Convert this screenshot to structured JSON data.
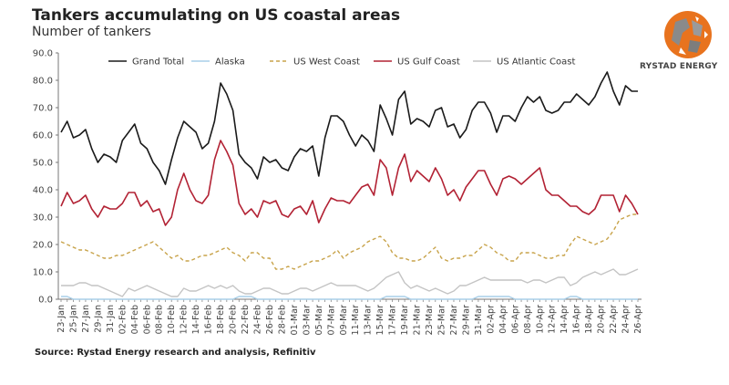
{
  "header": {
    "title": "Tankers accumulating on US coastal areas",
    "subtitle": "Number of tankers"
  },
  "logo": {
    "icon": "rystad-globe-icon",
    "text": "RYSTAD ENERGY"
  },
  "source": "Source: Rystad Energy research and analysis, Refinitiv",
  "chart_data": {
    "type": "line",
    "title": "Tankers accumulating on US coastal areas",
    "subtitle": "Number of tankers",
    "xlabel": "",
    "ylabel": "Number of tankers",
    "ylim": [
      0,
      90
    ],
    "yticks": [
      "0.0",
      "10.0",
      "20.0",
      "30.0",
      "40.0",
      "50.0",
      "60.0",
      "70.0",
      "80.0",
      "90.0"
    ],
    "grid": false,
    "legend_position": "top",
    "x_tick_labels": [
      "23-Jan",
      "25-Jan",
      "27-Jan",
      "29-Jan",
      "31-Jan",
      "02-Feb",
      "04-Feb",
      "06-Feb",
      "08-Feb",
      "10-Feb",
      "12-Feb",
      "14-Feb",
      "16-Feb",
      "18-Feb",
      "20-Feb",
      "22-Feb",
      "24-Feb",
      "26-Feb",
      "28-Feb",
      "01-Mar",
      "03-Mar",
      "05-Mar",
      "07-Mar",
      "09-Mar",
      "11-Mar",
      "13-Mar",
      "15-Mar",
      "17-Mar",
      "19-Mar",
      "21-Mar",
      "23-Mar",
      "25-Mar",
      "27-Mar",
      "29-Mar",
      "31-Mar",
      "02-Apr",
      "04-Apr",
      "06-Apr",
      "08-Apr",
      "10-Apr",
      "12-Apr",
      "14-Apr",
      "16-Apr",
      "18-Apr",
      "20-Apr",
      "22-Apr",
      "24-Apr",
      "26-Apr"
    ],
    "x_start": "23-Jan",
    "x_end": "26-Apr",
    "points_per_day": 1,
    "series": [
      {
        "name": "Grand Total",
        "color": "#1a1a1a",
        "dash": "solid",
        "values": [
          61,
          65,
          59,
          60,
          62,
          55,
          50,
          53,
          52,
          50,
          58,
          61,
          64,
          57,
          55,
          50,
          47,
          42,
          51,
          59,
          65,
          63,
          61,
          55,
          57,
          65,
          79,
          75,
          69,
          53,
          50,
          48,
          44,
          52,
          50,
          51,
          48,
          47,
          52,
          55,
          54,
          56,
          45,
          59,
          67,
          67,
          65,
          60,
          56,
          60,
          58,
          54,
          71,
          66,
          60,
          73,
          76,
          64,
          66,
          65,
          63,
          69,
          70,
          63,
          64,
          59,
          62,
          69,
          72,
          72,
          68,
          61,
          67,
          67,
          65,
          70,
          74,
          72,
          74,
          69,
          68,
          69,
          72,
          72,
          75,
          73,
          71,
          74,
          79,
          83,
          76,
          71,
          78,
          76,
          76
        ]
      },
      {
        "name": "Alaska",
        "color": "#a9cfe8",
        "dash": "solid",
        "values": [
          1,
          1,
          0,
          0,
          0,
          0,
          0,
          0,
          0,
          0,
          0,
          0,
          0,
          0,
          0,
          0,
          0,
          0,
          0,
          0,
          0,
          0,
          0,
          0,
          0,
          0,
          0,
          0,
          0,
          1,
          1,
          1,
          0,
          0,
          0,
          0,
          0,
          0,
          0,
          0,
          0,
          0,
          0,
          0,
          0,
          0,
          0,
          0,
          0,
          0,
          0,
          0,
          0,
          1,
          1,
          1,
          1,
          0,
          0,
          0,
          0,
          0,
          0,
          0,
          0,
          0,
          0,
          0,
          1,
          1,
          1,
          1,
          1,
          1,
          0,
          0,
          0,
          0,
          0,
          0,
          0,
          0,
          0,
          1,
          1,
          0,
          0,
          0,
          0,
          0,
          0,
          0,
          0,
          0,
          0
        ]
      },
      {
        "name": "US West Coast",
        "color": "#c8a34a",
        "dash": "dashed",
        "values": [
          21,
          20,
          19,
          18,
          18,
          17,
          16,
          15,
          15,
          16,
          16,
          17,
          18,
          19,
          20,
          21,
          19,
          17,
          15,
          16,
          14,
          14,
          15,
          16,
          16,
          17,
          18,
          19,
          17,
          16,
          14,
          17,
          17,
          15,
          15,
          11,
          11,
          12,
          11,
          12,
          13,
          14,
          14,
          15,
          16,
          18,
          15,
          17,
          18,
          19,
          21,
          22,
          23,
          21,
          17,
          15,
          15,
          14,
          14,
          15,
          17,
          19,
          15,
          14,
          15,
          15,
          16,
          16,
          18,
          20,
          19,
          17,
          16,
          14,
          14,
          17,
          17,
          17,
          16,
          15,
          15,
          16,
          16,
          20,
          23,
          22,
          21,
          20,
          21,
          22,
          25,
          29,
          30,
          31,
          31
        ]
      },
      {
        "name": "US Gulf Coast",
        "color": "#b22234",
        "dash": "solid",
        "values": [
          34,
          39,
          35,
          36,
          38,
          33,
          30,
          34,
          33,
          33,
          35,
          39,
          39,
          34,
          36,
          32,
          33,
          27,
          30,
          40,
          46,
          40,
          36,
          35,
          38,
          51,
          58,
          54,
          49,
          35,
          31,
          33,
          30,
          36,
          35,
          36,
          31,
          30,
          33,
          34,
          31,
          36,
          28,
          33,
          37,
          36,
          36,
          35,
          38,
          41,
          42,
          38,
          51,
          48,
          38,
          48,
          53,
          43,
          47,
          45,
          43,
          48,
          44,
          38,
          40,
          36,
          41,
          44,
          47,
          47,
          42,
          38,
          44,
          45,
          44,
          42,
          44,
          46,
          48,
          40,
          38,
          38,
          36,
          34,
          34,
          32,
          31,
          33,
          38,
          38,
          38,
          32,
          38,
          35,
          31
        ]
      },
      {
        "name": "US Atlantic Coast",
        "color": "#c4c4c4",
        "dash": "solid",
        "values": [
          5,
          5,
          5,
          6,
          6,
          5,
          5,
          4,
          3,
          2,
          1,
          4,
          3,
          4,
          5,
          4,
          3,
          2,
          1,
          1,
          4,
          3,
          3,
          4,
          5,
          4,
          5,
          4,
          5,
          3,
          2,
          2,
          3,
          4,
          4,
          3,
          2,
          2,
          3,
          4,
          4,
          3,
          4,
          5,
          6,
          5,
          5,
          5,
          5,
          4,
          3,
          4,
          6,
          8,
          9,
          10,
          6,
          4,
          5,
          4,
          3,
          4,
          3,
          2,
          3,
          5,
          5,
          6,
          7,
          8,
          7,
          7,
          7,
          7,
          7,
          7,
          6,
          7,
          7,
          6,
          7,
          8,
          8,
          5,
          6,
          8,
          9,
          10,
          9,
          10,
          11,
          9,
          9,
          10,
          11
        ]
      }
    ]
  }
}
